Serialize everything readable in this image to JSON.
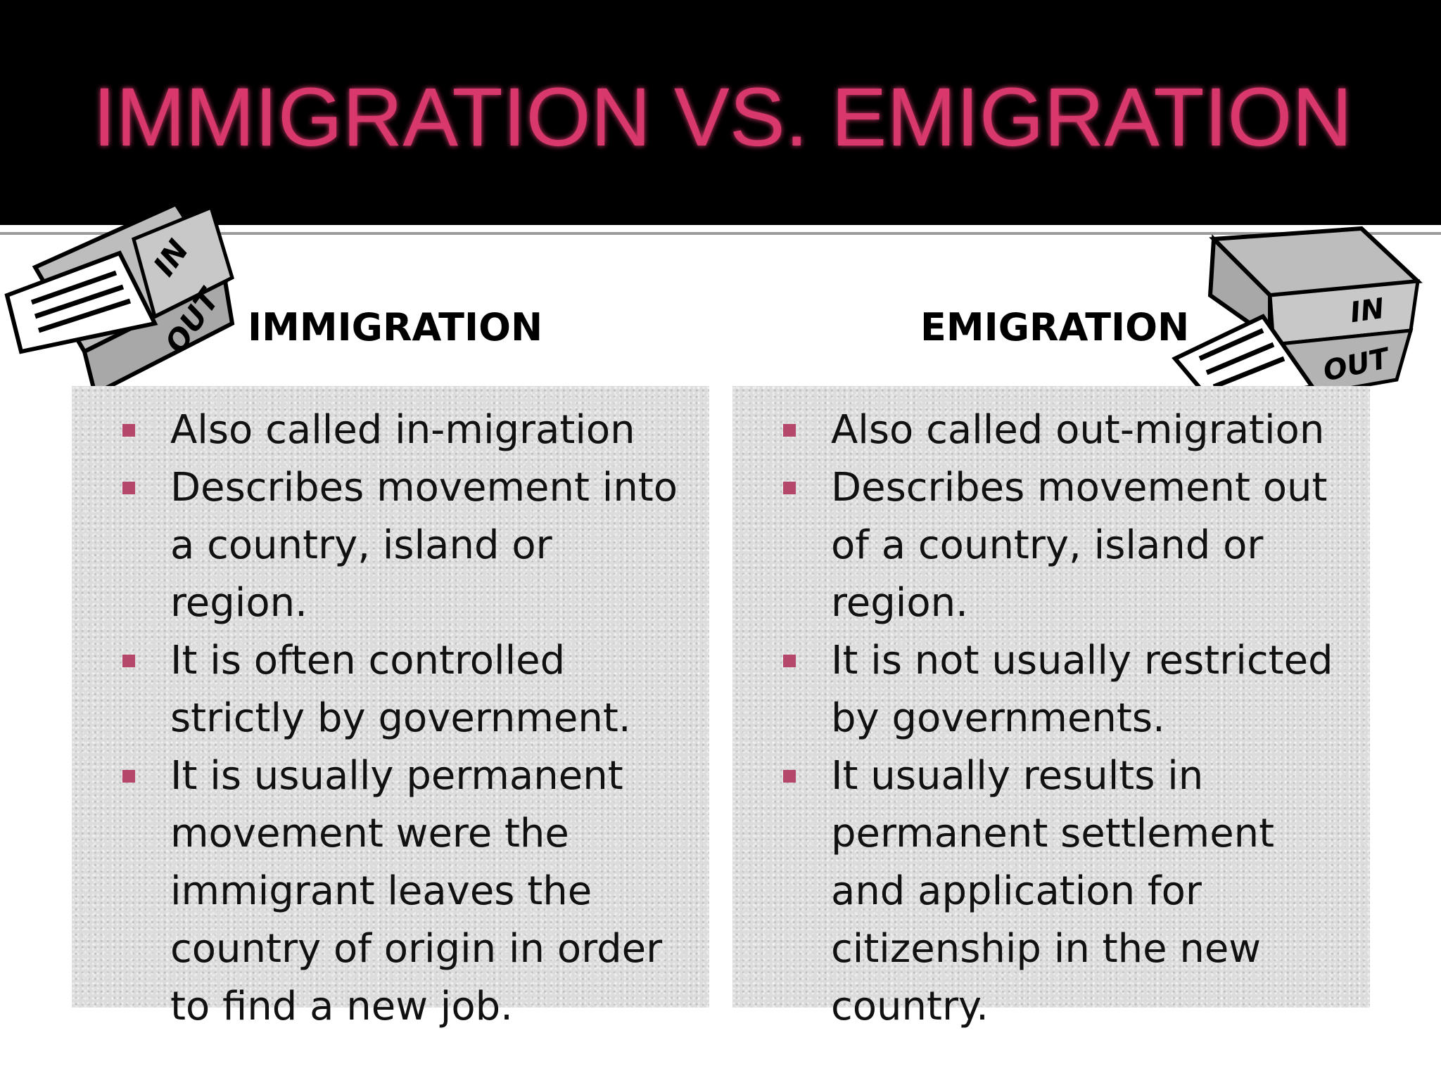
{
  "header": {
    "title": "IMMIGRATION VS. EMIGRATION"
  },
  "columns": [
    {
      "heading": "IMMIGRATION",
      "icon_labels": [
        "IN",
        "OUT"
      ],
      "bullets": [
        "Also called in-migration",
        "Describes movement into a country, island or region.",
        "It is often controlled strictly by government.",
        "It is usually permanent movement were the immigrant leaves the country of origin in order to find a new job."
      ]
    },
    {
      "heading": "EMIGRATION",
      "icon_labels": [
        "IN",
        "OUT"
      ],
      "bullets": [
        "Also called out-migration",
        "Describes movement  out of a country, island or region.",
        "It is not usually restricted by governments.",
        "It usually results in permanent settlement and application for citizenship in the new country."
      ]
    }
  ]
}
